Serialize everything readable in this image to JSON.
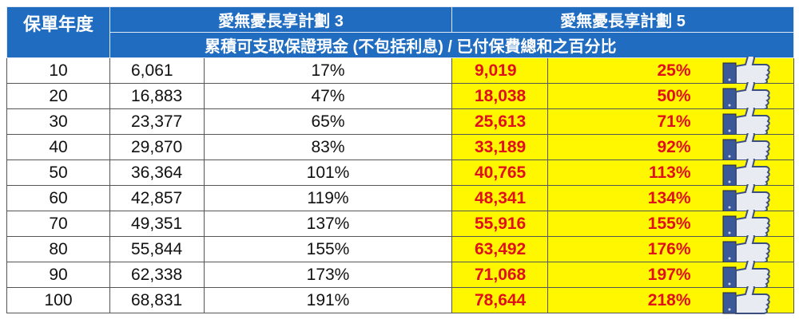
{
  "header": {
    "year_label": "保單年度",
    "plan3": "愛無憂長享計劃 3",
    "plan5": "愛無憂長享計劃 5",
    "subtitle": "累積可支取保證現金 (不包括利息) / 已付保費總和之百分比"
  },
  "colors": {
    "header_bg": "#1f6cc0",
    "highlight_bg": "#fff700",
    "highlight_text": "#e0101a"
  },
  "icons": {
    "row_icon": "thumbs-up-icon"
  },
  "rows": [
    {
      "year": "10",
      "p3_cash": "6,061",
      "p3_pct": "17%",
      "p5_cash": "9,019",
      "p5_pct": "25%"
    },
    {
      "year": "20",
      "p3_cash": "16,883",
      "p3_pct": "47%",
      "p5_cash": "18,038",
      "p5_pct": "50%"
    },
    {
      "year": "30",
      "p3_cash": "23,377",
      "p3_pct": "65%",
      "p5_cash": "25,613",
      "p5_pct": "71%"
    },
    {
      "year": "40",
      "p3_cash": "29,870",
      "p3_pct": "83%",
      "p5_cash": "33,189",
      "p5_pct": "92%"
    },
    {
      "year": "50",
      "p3_cash": "36,364",
      "p3_pct": "101%",
      "p5_cash": "40,765",
      "p5_pct": "113%"
    },
    {
      "year": "60",
      "p3_cash": "42,857",
      "p3_pct": "119%",
      "p5_cash": "48,341",
      "p5_pct": "134%"
    },
    {
      "year": "70",
      "p3_cash": "49,351",
      "p3_pct": "137%",
      "p5_cash": "55,916",
      "p5_pct": "155%"
    },
    {
      "year": "80",
      "p3_cash": "55,844",
      "p3_pct": "155%",
      "p5_cash": "63,492",
      "p5_pct": "176%"
    },
    {
      "year": "90",
      "p3_cash": "62,338",
      "p3_pct": "173%",
      "p5_cash": "71,068",
      "p5_pct": "197%"
    },
    {
      "year": "100",
      "p3_cash": "68,831",
      "p3_pct": "191%",
      "p5_cash": "78,644",
      "p5_pct": "218%"
    }
  ]
}
